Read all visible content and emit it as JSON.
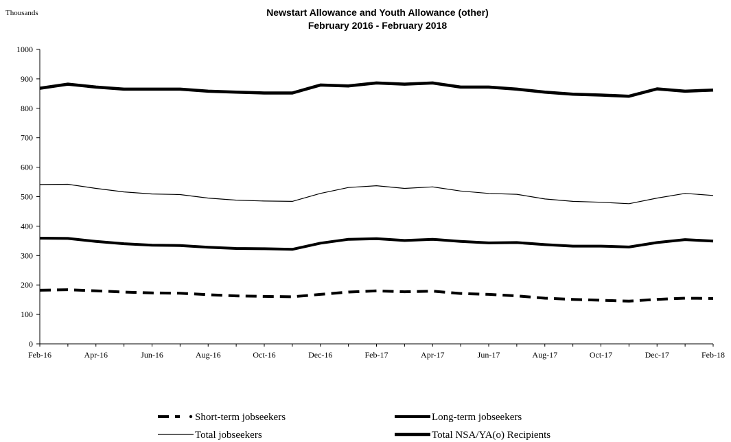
{
  "chart_data": {
    "type": "line",
    "title": "Newstart Allowance and Youth Allowance (other)",
    "subtitle": "February 2016 - February 2018",
    "y_unit_label": "Thousands",
    "xlabel": "",
    "ylabel": "",
    "ylim": [
      0,
      1000
    ],
    "y_ticks": [
      "0",
      "100",
      "200",
      "300",
      "400",
      "500",
      "600",
      "700",
      "800",
      "900",
      "1000"
    ],
    "x": [
      "Feb-16",
      "Mar-16",
      "Apr-16",
      "May-16",
      "Jun-16",
      "Jul-16",
      "Aug-16",
      "Sep-16",
      "Oct-16",
      "Nov-16",
      "Dec-16",
      "Jan-17",
      "Feb-17",
      "Mar-17",
      "Apr-17",
      "May-17",
      "Jun-17",
      "Jul-17",
      "Aug-17",
      "Sep-17",
      "Oct-17",
      "Nov-17",
      "Dec-17",
      "Jan-18",
      "Feb-18"
    ],
    "x_tick_labels": [
      "Feb-16",
      "Apr-16",
      "Jun-16",
      "Aug-16",
      "Oct-16",
      "Dec-16",
      "Feb-17",
      "Apr-17",
      "Jun-17",
      "Aug-17",
      "Oct-17",
      "Dec-17",
      "Feb-18"
    ],
    "grid": false,
    "legend_position": "bottom",
    "series": [
      {
        "name": "Short-term jobseekers",
        "style": "dashed-thick",
        "color": "#000000",
        "values": [
          182,
          184,
          180,
          176,
          173,
          172,
          167,
          163,
          161,
          160,
          168,
          176,
          180,
          177,
          179,
          171,
          168,
          163,
          155,
          151,
          148,
          145,
          151,
          155,
          154
        ]
      },
      {
        "name": "Long-term jobseekers",
        "style": "solid-thick",
        "color": "#000000",
        "values": [
          359,
          358,
          348,
          340,
          335,
          334,
          328,
          324,
          323,
          321,
          342,
          355,
          357,
          351,
          355,
          348,
          343,
          344,
          337,
          332,
          332,
          329,
          344,
          354,
          349
        ]
      },
      {
        "name": "Total jobseekers",
        "style": "solid-thin",
        "color": "#000000",
        "values": [
          541,
          542,
          528,
          516,
          509,
          507,
          495,
          488,
          485,
          484,
          511,
          531,
          537,
          528,
          533,
          519,
          511,
          508,
          492,
          484,
          481,
          476,
          495,
          511,
          504
        ]
      },
      {
        "name": "Total NSA/YA(o) Recipients",
        "style": "solid-thicker",
        "color": "#000000",
        "values": [
          868,
          882,
          872,
          865,
          865,
          865,
          858,
          855,
          852,
          852,
          879,
          876,
          886,
          882,
          886,
          872,
          872,
          865,
          855,
          848,
          845,
          841,
          866,
          858,
          862
        ]
      }
    ]
  }
}
